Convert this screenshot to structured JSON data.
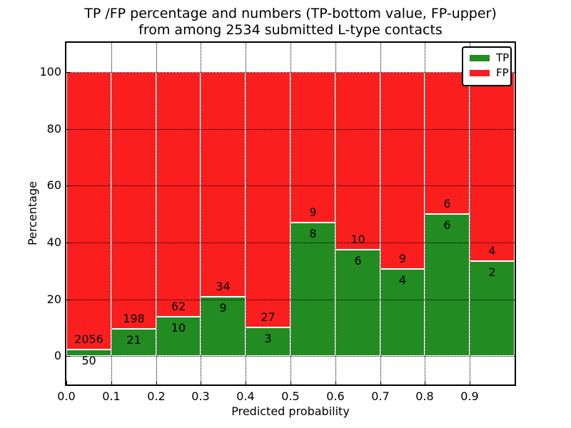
{
  "figure": {
    "title_line1": "TP /FP percentage and numbers (TP-bottom value, FP-upper)",
    "title_line2": "from among 2534 submitted L-type contacts"
  },
  "chart_data": {
    "type": "bar",
    "stacked": true,
    "title": "TP /FP percentage and numbers (TP-bottom value, FP-upper) from among 2534 submitted L-type contacts",
    "xlabel": "Predicted probability",
    "ylabel": "Percentage",
    "total_contacts": 2534,
    "xlim": [
      0.0,
      1.0
    ],
    "ylim": [
      -10,
      110.3
    ],
    "grid": true,
    "grid_style": "dotted",
    "legend_position": "upper right",
    "x_tick_labels": [
      "0.0",
      "0.1",
      "0.2",
      "0.3",
      "0.4",
      "0.5",
      "0.6",
      "0.7",
      "0.8",
      "0.9"
    ],
    "y_ticks": [
      0,
      20,
      40,
      60,
      80,
      100
    ],
    "note": "bar height = tp/(tp+fp)*100 for TP (green, bottom) and fp share above it to 100%",
    "bins": [
      {
        "range": "0.0-0.1",
        "tp": 50,
        "fp": 2056
      },
      {
        "range": "0.1-0.2",
        "tp": 21,
        "fp": 198
      },
      {
        "range": "0.2-0.3",
        "tp": 10,
        "fp": 62
      },
      {
        "range": "0.3-0.4",
        "tp": 9,
        "fp": 34
      },
      {
        "range": "0.4-0.5",
        "tp": 3,
        "fp": 27
      },
      {
        "range": "0.5-0.6",
        "tp": 8,
        "fp": 9
      },
      {
        "range": "0.6-0.7",
        "tp": 6,
        "fp": 10
      },
      {
        "range": "0.7-0.8",
        "tp": 4,
        "fp": 9
      },
      {
        "range": "0.8-0.9",
        "tp": 6,
        "fp": 6
      },
      {
        "range": "0.9-1.0",
        "tp": 2,
        "fp": 4
      }
    ],
    "series": [
      {
        "name": "TP",
        "color": "#228b22"
      },
      {
        "name": "FP",
        "color": "#fa1e1e"
      }
    ],
    "colors": {
      "bar_edge": "#ffffff",
      "grid": "#000000",
      "background": "#ffffff",
      "text": "#000000"
    }
  }
}
